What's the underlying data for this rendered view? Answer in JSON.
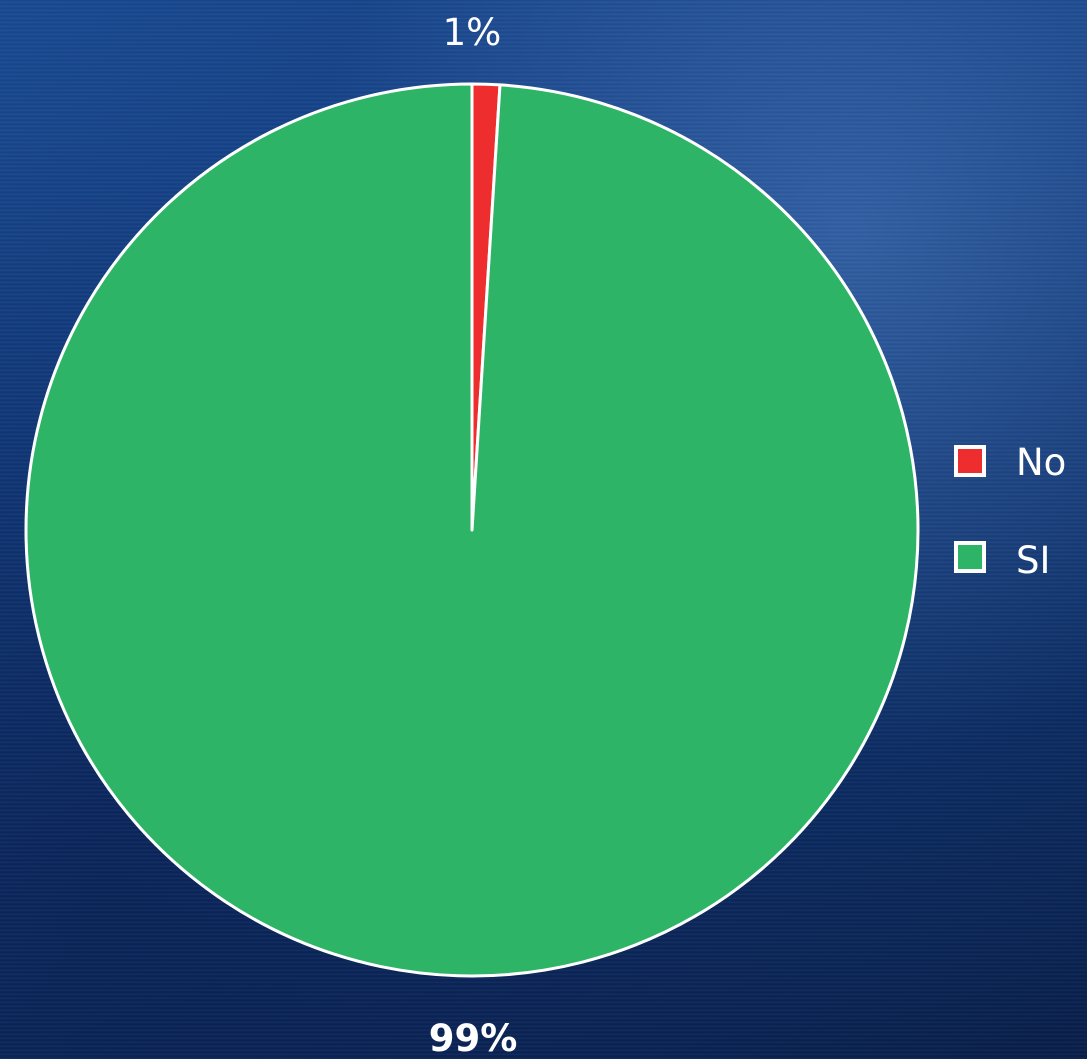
{
  "chart_data": {
    "type": "pie",
    "slices": [
      {
        "label": "No",
        "value": 1,
        "display": "1%",
        "color": "#ee2e2e"
      },
      {
        "label": "SI",
        "value": 99,
        "display": "99%",
        "color": "#2eb467"
      }
    ],
    "legend": {
      "position": "right",
      "entries": [
        "No",
        "SI"
      ]
    },
    "slice_border_color": "#ffffff"
  }
}
